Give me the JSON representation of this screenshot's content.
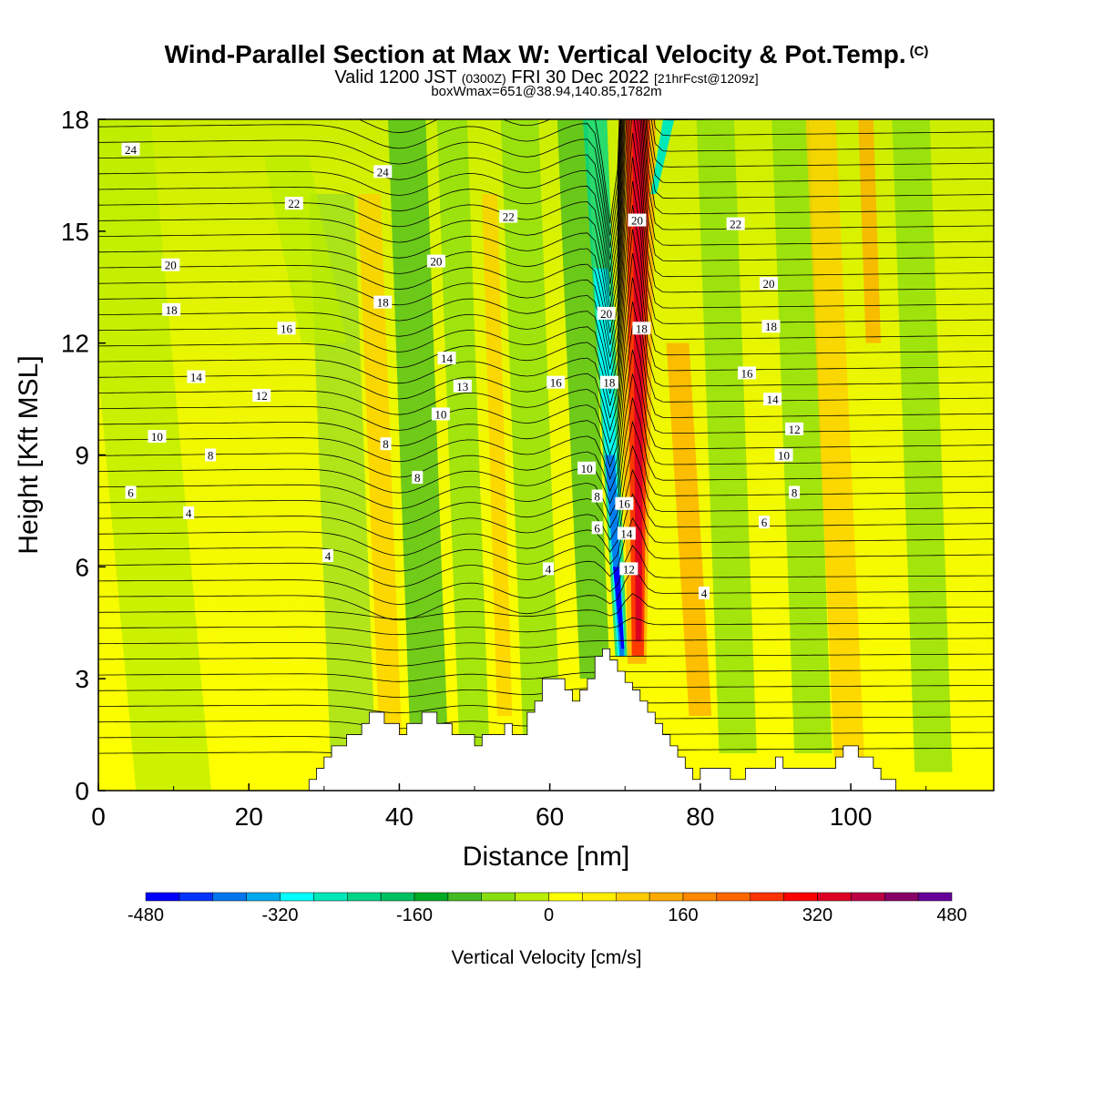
{
  "header": {
    "title": "Wind-Parallel Section at Max W: Vertical Velocity & Pot.Temp.",
    "copyright": "(C)",
    "valid_prefix": "Valid 1200 JST",
    "valid_utc": "(0300Z)",
    "valid_date": "FRI 30 Dec 2022",
    "forecast": "[21hrFcst@1209z]",
    "box_info": "boxWmax=651@38.94,140.85,1782m"
  },
  "chart_data": {
    "type": "heatmap",
    "xlabel": "Distance [nm]",
    "ylabel": "Height [Kft MSL]",
    "xlim": [
      0,
      119
    ],
    "ylim": [
      0,
      18
    ],
    "x_ticks": [
      "0",
      "20",
      "40",
      "60",
      "80",
      "100"
    ],
    "y_ticks": [
      "0",
      "3",
      "6",
      "9",
      "12",
      "15",
      "18"
    ],
    "colorbar": {
      "label": "Vertical Velocity [cm/s]",
      "min": -480,
      "max": 480,
      "step": 40,
      "tick_labels": [
        "-480",
        "-320",
        "-160",
        "0",
        "160",
        "320",
        "480"
      ],
      "colors": [
        "#0000ff",
        "#0033ff",
        "#0077ee",
        "#00aaee",
        "#00ffff",
        "#00e8b8",
        "#00d488",
        "#00c060",
        "#00aa22",
        "#44bb22",
        "#88dd11",
        "#bbee00",
        "#ffff00",
        "#ffee00",
        "#ffcc00",
        "#ffaa00",
        "#ff8800",
        "#ff6600",
        "#ff3300",
        "#ff0000",
        "#dd0022",
        "#bb0044",
        "#880066",
        "#660099"
      ]
    },
    "theta_contour_labels": [
      {
        "x": 4.3,
        "y": 17.2,
        "text": "24"
      },
      {
        "x": 37.8,
        "y": 16.6,
        "text": "24"
      },
      {
        "x": 26,
        "y": 15.75,
        "text": "22"
      },
      {
        "x": 54.5,
        "y": 15.4,
        "text": "22"
      },
      {
        "x": 84.7,
        "y": 15.2,
        "text": "22"
      },
      {
        "x": 9.6,
        "y": 14.1,
        "text": "20"
      },
      {
        "x": 44.9,
        "y": 14.2,
        "text": "20"
      },
      {
        "x": 89.1,
        "y": 13.6,
        "text": "20"
      },
      {
        "x": 9.7,
        "y": 12.9,
        "text": "18"
      },
      {
        "x": 37.8,
        "y": 13.1,
        "text": "18"
      },
      {
        "x": 89.4,
        "y": 12.45,
        "text": "18"
      },
      {
        "x": 25,
        "y": 12.4,
        "text": "16"
      },
      {
        "x": 86.2,
        "y": 11.2,
        "text": "16"
      },
      {
        "x": 13,
        "y": 11.1,
        "text": "14"
      },
      {
        "x": 46.3,
        "y": 11.6,
        "text": "14"
      },
      {
        "x": 89.6,
        "y": 10.5,
        "text": "14"
      },
      {
        "x": 21.7,
        "y": 10.6,
        "text": "12"
      },
      {
        "x": 92.5,
        "y": 9.7,
        "text": "12"
      },
      {
        "x": 7.8,
        "y": 9.5,
        "text": "10"
      },
      {
        "x": 45.5,
        "y": 10.1,
        "text": "10"
      },
      {
        "x": 91.1,
        "y": 9.0,
        "text": "10"
      },
      {
        "x": 14.9,
        "y": 9.0,
        "text": "8"
      },
      {
        "x": 38.2,
        "y": 9.3,
        "text": "8"
      },
      {
        "x": 92.5,
        "y": 8.0,
        "text": "8"
      },
      {
        "x": 42.4,
        "y": 8.4,
        "text": "8"
      },
      {
        "x": 4.3,
        "y": 8.0,
        "text": "6"
      },
      {
        "x": 88.5,
        "y": 7.2,
        "text": "6"
      },
      {
        "x": 12,
        "y": 7.45,
        "text": "4"
      },
      {
        "x": 30.5,
        "y": 6.3,
        "text": "4"
      },
      {
        "x": 59.8,
        "y": 5.95,
        "text": "4"
      },
      {
        "x": 80.5,
        "y": 5.3,
        "text": "4"
      },
      {
        "x": 60.8,
        "y": 10.95,
        "text": "16"
      },
      {
        "x": 64.9,
        "y": 8.65,
        "text": "10"
      },
      {
        "x": 66.3,
        "y": 7.9,
        "text": "8"
      },
      {
        "x": 66.3,
        "y": 7.05,
        "text": "6"
      },
      {
        "x": 67.5,
        "y": 12.8,
        "text": "20"
      },
      {
        "x": 67.9,
        "y": 10.95,
        "text": "18"
      },
      {
        "x": 69.9,
        "y": 7.7,
        "text": "16"
      },
      {
        "x": 70.2,
        "y": 6.9,
        "text": "14"
      },
      {
        "x": 70.5,
        "y": 5.95,
        "text": "12"
      },
      {
        "x": 71.6,
        "y": 15.3,
        "text": "20"
      },
      {
        "x": 72.2,
        "y": 12.4,
        "text": "18"
      },
      {
        "x": 48.4,
        "y": 10.85,
        "text": "13"
      }
    ],
    "terrain_profile": {
      "x": [
        0,
        28,
        28,
        29,
        29,
        30,
        30,
        31,
        31,
        33,
        33,
        35,
        35,
        36,
        36,
        38,
        38,
        40,
        40,
        41,
        41,
        43,
        43,
        45,
        45,
        47,
        47,
        50,
        50,
        51,
        51,
        54,
        54,
        55,
        55,
        57,
        57,
        58,
        58,
        59,
        59,
        62,
        62,
        63,
        63,
        64,
        64,
        65,
        65,
        66,
        66,
        67,
        67,
        68,
        68,
        69,
        69,
        70,
        70,
        71,
        71,
        72,
        72,
        73,
        73,
        74,
        74,
        75,
        75,
        76,
        76,
        77,
        77,
        78,
        78,
        79,
        79,
        80,
        80,
        84,
        84,
        86,
        86,
        90,
        90,
        91,
        91,
        98,
        98,
        99,
        99,
        101,
        101,
        103,
        103,
        104,
        104,
        106,
        106,
        119
      ],
      "y": [
        0,
        0,
        0.3,
        0.3,
        0.6,
        0.6,
        0.9,
        0.9,
        1.2,
        1.2,
        1.5,
        1.5,
        1.8,
        1.8,
        2.1,
        2.1,
        1.8,
        1.8,
        1.5,
        1.5,
        1.8,
        1.8,
        2.1,
        2.1,
        1.8,
        1.8,
        1.5,
        1.5,
        1.2,
        1.2,
        1.5,
        1.5,
        1.8,
        1.8,
        1.5,
        1.5,
        2.1,
        2.1,
        2.4,
        2.4,
        3.0,
        3.0,
        2.7,
        2.7,
        2.4,
        2.4,
        2.7,
        2.7,
        3.0,
        3.0,
        3.6,
        3.6,
        3.8,
        3.8,
        3.5,
        3.5,
        3.2,
        3.2,
        2.9,
        2.9,
        2.7,
        2.7,
        2.4,
        2.4,
        2.1,
        2.1,
        1.8,
        1.8,
        1.5,
        1.5,
        1.2,
        1.2,
        0.9,
        0.9,
        0.6,
        0.6,
        0.3,
        0.3,
        0.6,
        0.6,
        0.3,
        0.3,
        0.6,
        0.6,
        0.9,
        0.9,
        0.6,
        0.6,
        0.9,
        0.9,
        1.2,
        1.2,
        0.9,
        0.9,
        0.6,
        0.6,
        0.3,
        0.3,
        0,
        0
      ]
    }
  }
}
